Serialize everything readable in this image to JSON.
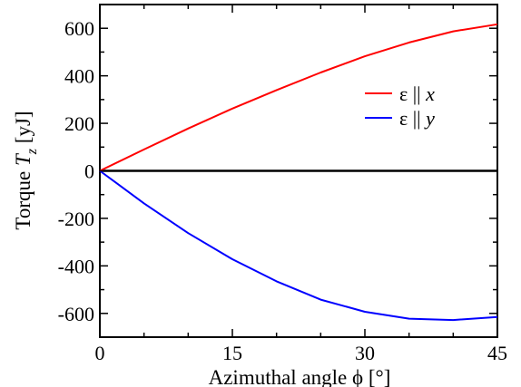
{
  "chart_data": {
    "type": "line",
    "xlabel": "Azimuthal angle ϕ [°]",
    "ylabel": {
      "main": "Torque ",
      "symbol": "T",
      "subscript": "z",
      "unit": " [yJ]"
    },
    "xlim": [
      0,
      45
    ],
    "ylim": [
      -700,
      700
    ],
    "x_ticks": [
      0,
      15,
      30,
      45
    ],
    "y_ticks": [
      -600,
      -400,
      -200,
      0,
      200,
      400,
      600
    ],
    "x_tick_labels": [
      "0",
      "15",
      "30",
      "45"
    ],
    "y_tick_labels": [
      "-600",
      "-400",
      "-200",
      "0",
      "200",
      "400",
      "600"
    ],
    "grid": false,
    "legend_position": "upper-right",
    "zero_line": true,
    "series": [
      {
        "name": "ε || x",
        "legend_symbol": "ε",
        "legend_var": "x",
        "color": "#ff0000",
        "x": [
          0,
          5,
          10,
          15,
          20,
          25,
          30,
          35,
          40,
          45
        ],
        "values": [
          0,
          90,
          178,
          262,
          340,
          414,
          482,
          540,
          587,
          617
        ]
      },
      {
        "name": "ε || y",
        "legend_symbol": "ε",
        "legend_var": "y",
        "color": "#0000ff",
        "x": [
          0,
          5,
          10,
          15,
          20,
          25,
          30,
          35,
          40,
          45
        ],
        "values": [
          0,
          -137,
          -262,
          -372,
          -465,
          -542,
          -593,
          -622,
          -628,
          -615
        ]
      }
    ]
  }
}
